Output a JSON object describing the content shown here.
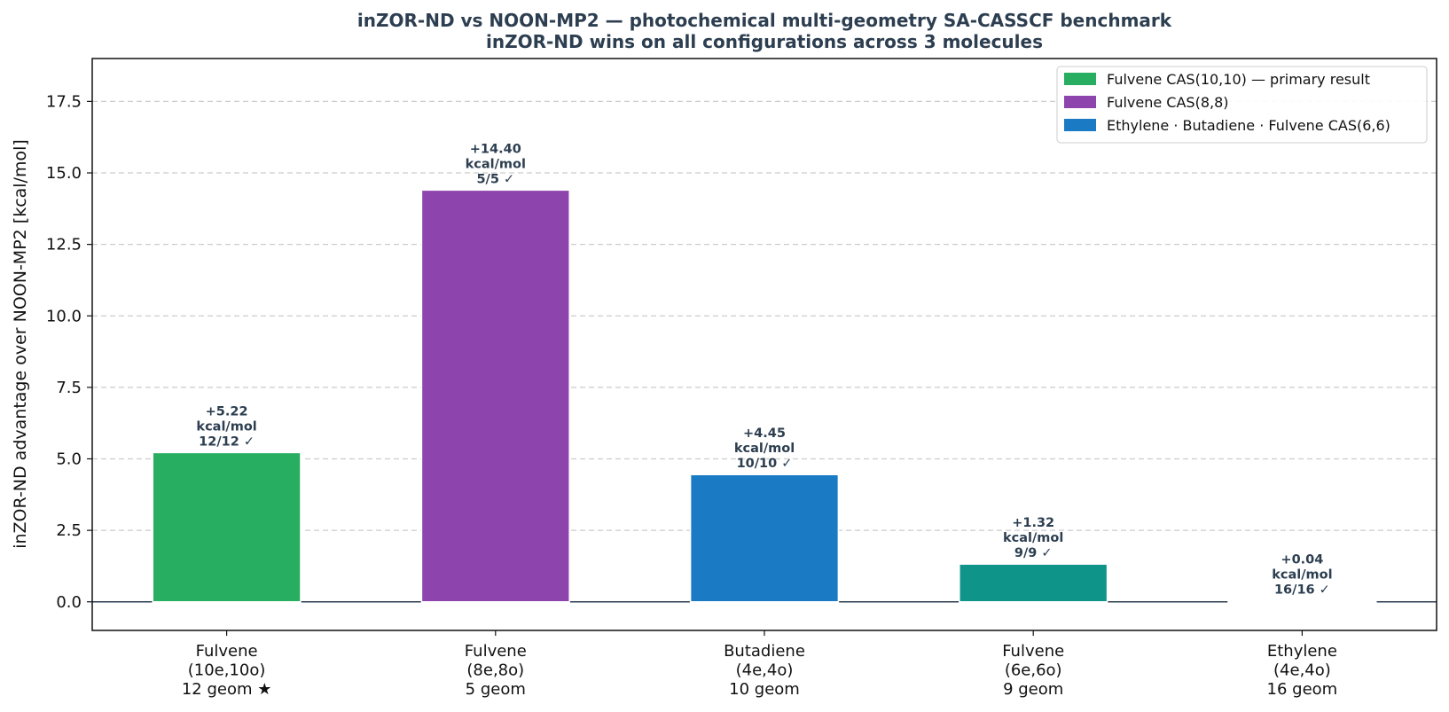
{
  "chart_data": {
    "type": "bar",
    "title": "inZOR-ND vs NOON-MP2 — photochemical multi-geometry SA-CASSCF benchmark",
    "subtitle": "inZOR-ND wins on all configurations across 3 molecules",
    "ylabel": "inZOR-ND advantage over NOON-MP2  [kcal/mol]",
    "xlabel": "",
    "ylim": [
      -1,
      19
    ],
    "yticks": [
      "0.0",
      "2.5",
      "5.0",
      "7.5",
      "10.0",
      "12.5",
      "15.0",
      "17.5"
    ],
    "grid": "y-dashed",
    "legend_position": "top-right",
    "legend": [
      {
        "label": "Fulvene CAS(10,10) — primary result",
        "color": "#27ae60"
      },
      {
        "label": "Fulvene CAS(8,8)",
        "color": "#8e44ad"
      },
      {
        "label": "Ethylene · Butadiene · Fulvene CAS(6,6)",
        "color": "#1a7bc4"
      }
    ],
    "bars": [
      {
        "category": [
          "Fulvene",
          "(10e,10o)",
          "12 geom ★"
        ],
        "value": 5.22,
        "color": "#27ae60",
        "label": [
          "+5.22",
          "kcal/mol",
          "12/12 ✓"
        ]
      },
      {
        "category": [
          "Fulvene",
          "(8e,8o)",
          "5 geom"
        ],
        "value": 14.4,
        "color": "#8e44ad",
        "label": [
          "+14.40",
          "kcal/mol",
          "5/5 ✓"
        ]
      },
      {
        "category": [
          "Butadiene",
          "(4e,4o)",
          "10 geom"
        ],
        "value": 4.45,
        "color": "#1a7bc4",
        "label": [
          "+4.45",
          "kcal/mol",
          "10/10 ✓"
        ]
      },
      {
        "category": [
          "Fulvene",
          "(6e,6o)",
          "9 geom"
        ],
        "value": 1.32,
        "color": "#0e9488",
        "label": [
          "+1.32",
          "kcal/mol",
          "9/9 ✓"
        ]
      },
      {
        "category": [
          "Ethylene",
          "(4e,4o)",
          "16 geom"
        ],
        "value": 0.04,
        "color": "#2c3e50",
        "label": [
          "+0.04",
          "kcal/mol",
          "16/16 ✓"
        ]
      }
    ]
  }
}
